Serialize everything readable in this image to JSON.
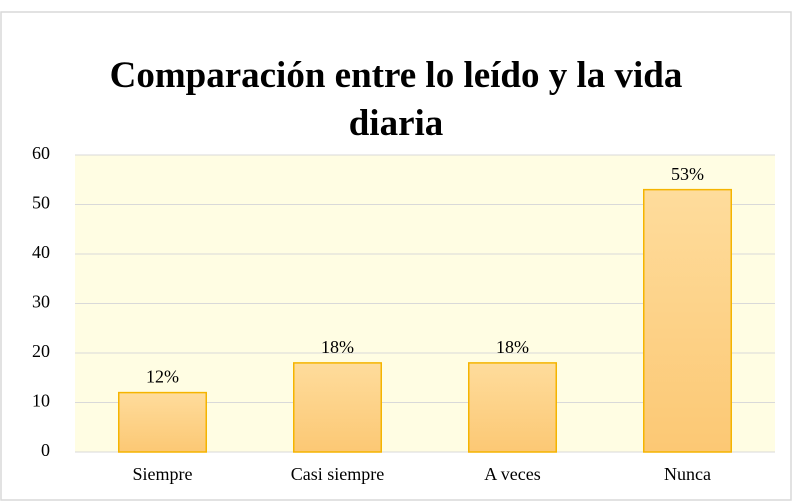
{
  "chart_data": {
    "type": "bar",
    "title": "Comparación entre lo leído y la vida diaria",
    "categories": [
      "Siempre",
      "Casi siempre",
      "A veces",
      "Nunca"
    ],
    "values": [
      12,
      18,
      18,
      53
    ],
    "value_labels": [
      "12%",
      "18%",
      "18%",
      "53%"
    ],
    "color": "#fdd28a",
    "ylim": [
      0,
      60
    ],
    "yticks": [
      0,
      10,
      20,
      30,
      40,
      50,
      60
    ],
    "grid": true
  }
}
